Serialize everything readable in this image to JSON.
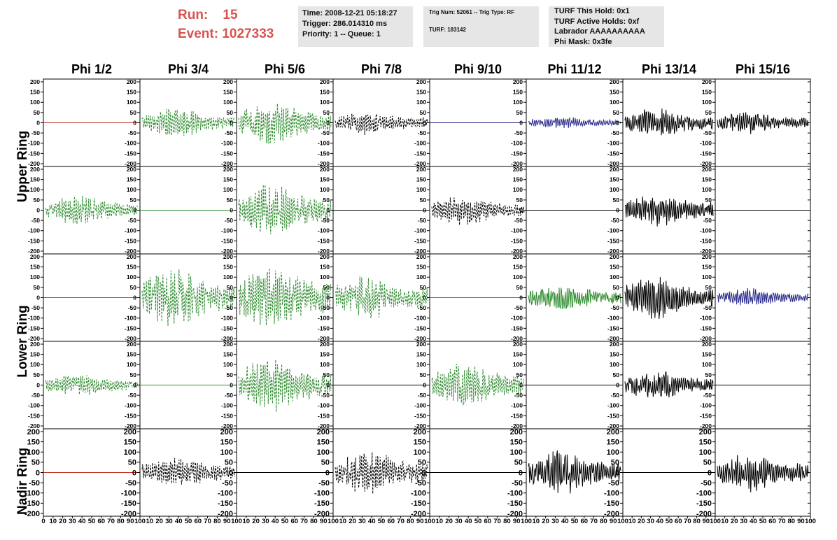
{
  "run": {
    "label": "Run:",
    "value": "15"
  },
  "event": {
    "label": "Event:",
    "value": "1027333"
  },
  "time_box": {
    "time": "Time: 2008-12-21 05:18:27",
    "trigger": "Trigger: 286.014310 ms",
    "priority": "Priority: 1 -- Queue: 1"
  },
  "trig_box": {
    "trig": "Trig Num: 52061 -- Trig Type: RF",
    "turf": "TURF: 183142"
  },
  "turf_box": {
    "hold": "TURF This Hold: 0x1",
    "active": "TURF Active Holds: 0xf",
    "labrador": "Labrador AAAAAAAAAA",
    "phimask": "Phi Mask: 0x3fe"
  },
  "chart_data": {
    "type": "line",
    "columns": [
      "Phi 1/2",
      "Phi 3/4",
      "Phi 5/6",
      "Phi 7/8",
      "Phi 9/10",
      "Phi 11/12",
      "Phi 13/14",
      "Phi 15/16"
    ],
    "ring_labels": [
      "Upper Ring",
      "Lower Ring",
      "Nadir Ring"
    ],
    "ylim": [
      -200,
      200
    ],
    "yticks": [
      200,
      150,
      100,
      50,
      0,
      -50,
      -100,
      -150,
      -200
    ],
    "xlim": [
      0,
      100
    ],
    "xticks": [
      0,
      10,
      20,
      30,
      40,
      50,
      60,
      70,
      80,
      90,
      100
    ],
    "colors": {
      "red": "#c0392b",
      "green": "#2e8b2e",
      "black": "#000000",
      "blue": "#2a2a8c"
    },
    "panels": [
      [
        "red flat 0",
        "green dashed 60",
        "green dashed 90",
        "black dashed 50",
        "blue flat 0",
        "blue solid 25",
        "black solid 60",
        "black solid 45"
      ],
      [
        "green dashed 60",
        "green flat 0",
        "green dashed 110",
        "black flat 0",
        "black dashed 60",
        "black flat 0",
        "black solid 70",
        "black flat 0"
      ],
      [
        "red flat 0",
        "green dashed 120",
        "green dashed 140",
        "green dashed 90",
        "green flat 0",
        "green solid 55",
        "black solid 90",
        "blue solid 40"
      ],
      [
        "green dashed 45",
        "green flat 0",
        "green dashed 110",
        "black flat 0",
        "green dashed 90",
        "black flat 0",
        "black solid 60",
        "black flat 0"
      ],
      [
        "red flat 0",
        "black dashed 65",
        "black flat 0",
        "black dashed 90",
        "black flat 0",
        "black solid 90",
        "black flat 0",
        "black solid 80"
      ]
    ]
  }
}
